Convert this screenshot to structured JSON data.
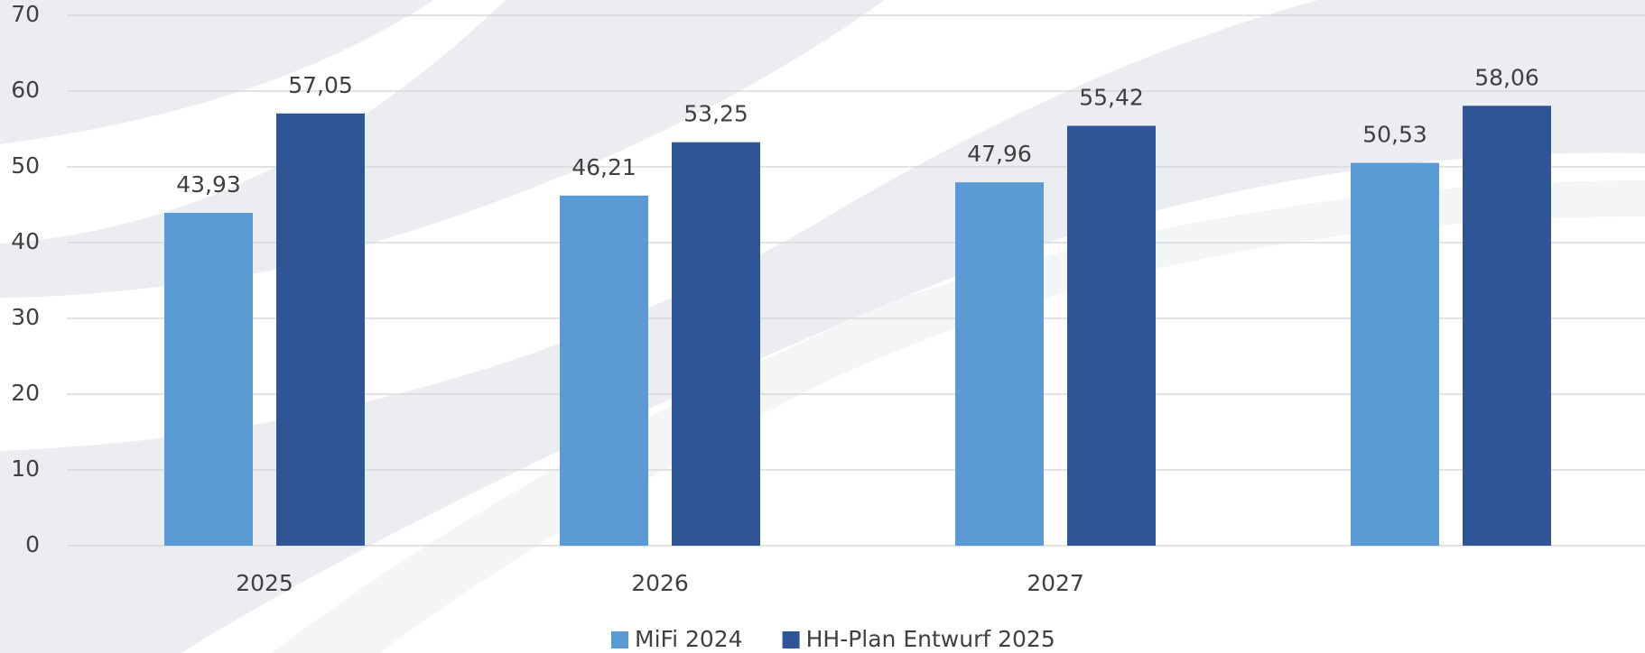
{
  "chart_data": {
    "type": "bar",
    "categories": [
      "2025",
      "2026",
      "2027",
      null
    ],
    "series": [
      {
        "name": "MiFi 2024",
        "color": "#5b9bd5",
        "values": [
          43.93,
          46.21,
          47.96,
          50.53
        ],
        "value_labels": [
          "43,93",
          "46,21",
          "47,96",
          "50,53"
        ]
      },
      {
        "name": "HH-Plan Entwurf 2025",
        "color": "#2f5597",
        "values": [
          57.05,
          53.25,
          55.42,
          58.06
        ],
        "value_labels": [
          "57,05",
          "53,25",
          "55,42",
          "58,06"
        ]
      }
    ],
    "ylim": [
      0,
      70
    ],
    "yticks": [
      0,
      10,
      20,
      30,
      40,
      50,
      60,
      70
    ],
    "grid": true,
    "legend": "bottom"
  }
}
